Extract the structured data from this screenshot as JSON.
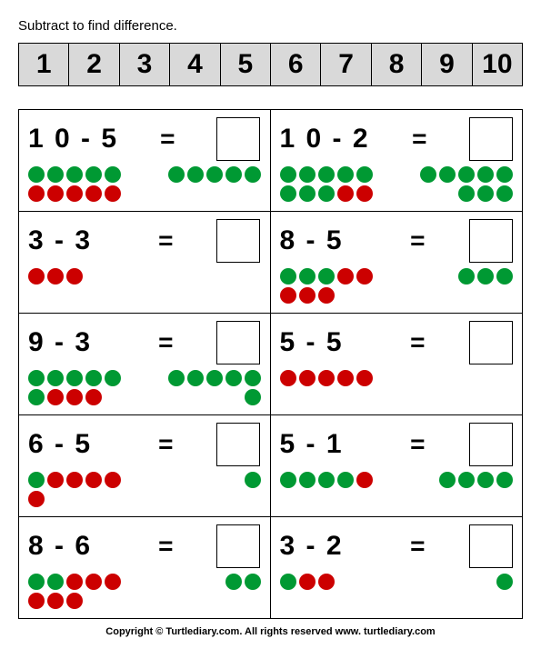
{
  "instruction": "Subtract to find difference.",
  "numberStrip": [
    "1",
    "2",
    "3",
    "4",
    "5",
    "6",
    "7",
    "8",
    "9",
    "10"
  ],
  "colors": {
    "green": "#009933",
    "red": "#cc0000"
  },
  "dotSize": 18,
  "problems": [
    {
      "expr": "1 0 - 5",
      "leftDots": [
        [
          "g",
          "g",
          "g",
          "g",
          "g"
        ],
        [
          "r",
          "r",
          "r",
          "r",
          "r"
        ]
      ],
      "rightDots": [
        [
          "g",
          "g",
          "g",
          "g",
          "g"
        ]
      ]
    },
    {
      "expr": "1 0 - 2",
      "leftDots": [
        [
          "g",
          "g",
          "g",
          "g",
          "g"
        ],
        [
          "g",
          "g",
          "g",
          "r",
          "r"
        ]
      ],
      "rightDots": [
        [
          "g",
          "g",
          "g",
          "g",
          "g"
        ],
        [
          "g",
          "g",
          "g"
        ]
      ]
    },
    {
      "expr": "3 - 3",
      "leftDots": [
        [
          "r",
          "r",
          "r"
        ]
      ],
      "rightDots": []
    },
    {
      "expr": "8 - 5",
      "leftDots": [
        [
          "g",
          "g",
          "g",
          "r",
          "r"
        ],
        [
          "r",
          "r",
          "r"
        ]
      ],
      "rightDots": [
        [
          "g",
          "g",
          "g"
        ]
      ]
    },
    {
      "expr": "9 - 3",
      "leftDots": [
        [
          "g",
          "g",
          "g",
          "g",
          "g"
        ],
        [
          "g",
          "r",
          "r",
          "r"
        ]
      ],
      "rightDots": [
        [
          "g",
          "g",
          "g",
          "g",
          "g"
        ],
        [
          "g"
        ]
      ]
    },
    {
      "expr": "5 - 5",
      "leftDots": [
        [
          "r",
          "r",
          "r",
          "r",
          "r"
        ]
      ],
      "rightDots": []
    },
    {
      "expr": "6 - 5",
      "leftDots": [
        [
          "g",
          "r",
          "r",
          "r",
          "r"
        ],
        [
          "r"
        ]
      ],
      "rightDots": [
        [
          "g"
        ]
      ]
    },
    {
      "expr": "5 - 1",
      "leftDots": [
        [
          "g",
          "g",
          "g",
          "g",
          "r"
        ]
      ],
      "rightDots": [
        [
          "g",
          "g",
          "g",
          "g"
        ]
      ]
    },
    {
      "expr": "8 - 6",
      "leftDots": [
        [
          "g",
          "g",
          "r",
          "r",
          "r"
        ],
        [
          "r",
          "r",
          "r"
        ]
      ],
      "rightDots": [
        [
          "g",
          "g"
        ]
      ]
    },
    {
      "expr": "3 - 2",
      "leftDots": [
        [
          "g",
          "r",
          "r"
        ]
      ],
      "rightDots": [
        [
          "g"
        ]
      ]
    }
  ],
  "copyright": "Copyright © Turtlediary.com. All rights reserved   www. turtlediary.com"
}
